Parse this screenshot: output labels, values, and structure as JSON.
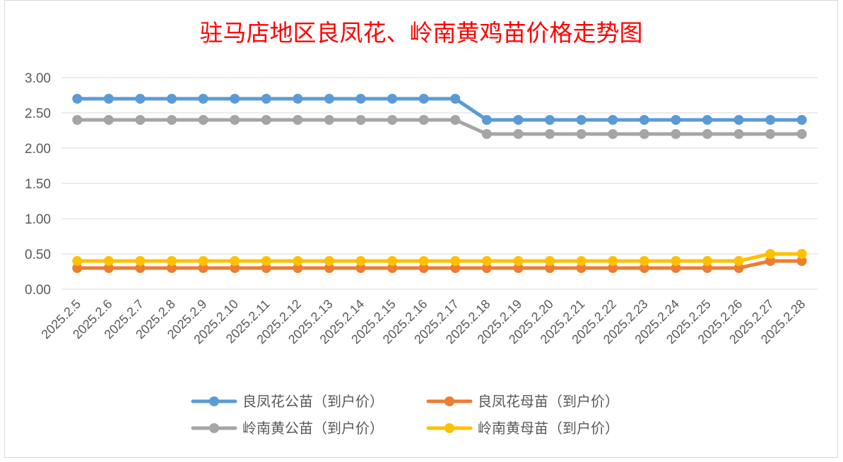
{
  "chart_data": {
    "type": "line",
    "title": "驻马店地区良凤花、岭南黄鸡苗价格走势图",
    "xlabel": "",
    "ylabel": "",
    "ylim": [
      0,
      3
    ],
    "yticks": [
      "0.00",
      "0.50",
      "1.00",
      "1.50",
      "2.00",
      "2.50",
      "3.00"
    ],
    "grid": "horizontal",
    "legend_position": "bottom",
    "categories": [
      "2025.2.5",
      "2025.2.6",
      "2025.2.7",
      "2025.2.8",
      "2025.2.9",
      "2025.2.10",
      "2025.2.11",
      "2025.2.12",
      "2025.2.13",
      "2025.2.14",
      "2025.2.15",
      "2025.2.16",
      "2025.2.17",
      "2025.2.18",
      "2025.2.19",
      "2025.2.20",
      "2025.2.21",
      "2025.2.22",
      "2025.2.23",
      "2025.2.24",
      "2025.2.25",
      "2025.2.26",
      "2025.2.27",
      "2025.2.28"
    ],
    "series": [
      {
        "name": "良凤花公苗（到户价）",
        "color": "#5b9bd5",
        "values": [
          2.7,
          2.7,
          2.7,
          2.7,
          2.7,
          2.7,
          2.7,
          2.7,
          2.7,
          2.7,
          2.7,
          2.7,
          2.7,
          2.4,
          2.4,
          2.4,
          2.4,
          2.4,
          2.4,
          2.4,
          2.4,
          2.4,
          2.4,
          2.4
        ]
      },
      {
        "name": "良凤花母苗（到户价）",
        "color": "#ed7d31",
        "values": [
          0.3,
          0.3,
          0.3,
          0.3,
          0.3,
          0.3,
          0.3,
          0.3,
          0.3,
          0.3,
          0.3,
          0.3,
          0.3,
          0.3,
          0.3,
          0.3,
          0.3,
          0.3,
          0.3,
          0.3,
          0.3,
          0.3,
          0.4,
          0.4
        ]
      },
      {
        "name": "岭南黄公苗（到户价）",
        "color": "#a5a5a5",
        "values": [
          2.4,
          2.4,
          2.4,
          2.4,
          2.4,
          2.4,
          2.4,
          2.4,
          2.4,
          2.4,
          2.4,
          2.4,
          2.4,
          2.2,
          2.2,
          2.2,
          2.2,
          2.2,
          2.2,
          2.2,
          2.2,
          2.2,
          2.2,
          2.2
        ]
      },
      {
        "name": "岭南黄母苗（到户价）",
        "color": "#ffc000",
        "values": [
          0.4,
          0.4,
          0.4,
          0.4,
          0.4,
          0.4,
          0.4,
          0.4,
          0.4,
          0.4,
          0.4,
          0.4,
          0.4,
          0.4,
          0.4,
          0.4,
          0.4,
          0.4,
          0.4,
          0.4,
          0.4,
          0.4,
          0.5,
          0.5
        ]
      }
    ]
  }
}
